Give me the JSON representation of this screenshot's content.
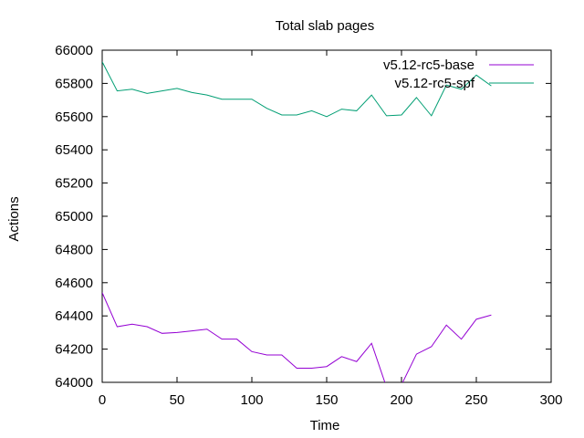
{
  "chart_data": {
    "type": "line",
    "title": "Total slab pages",
    "xlabel": "Time",
    "ylabel": "Actions",
    "xlim": [
      0,
      300
    ],
    "ylim": [
      64000,
      66000
    ],
    "xticks": [
      0,
      50,
      100,
      150,
      200,
      250,
      300
    ],
    "yticks": [
      64000,
      64200,
      64400,
      64600,
      64800,
      65000,
      65200,
      65400,
      65600,
      65800,
      66000
    ],
    "grid": false,
    "legend_position": "top-right",
    "series": [
      {
        "name": "v5.12-rc5-base",
        "color": "#9400d3",
        "x": [
          0,
          10,
          20,
          30,
          40,
          50,
          60,
          70,
          80,
          90,
          100,
          110,
          120,
          130,
          140,
          150,
          160,
          170,
          180,
          190,
          200,
          210,
          220,
          230,
          240,
          250,
          260
        ],
        "values": [
          64540,
          64335,
          64350,
          64335,
          64295,
          64300,
          64310,
          64320,
          64260,
          64260,
          64185,
          64165,
          64165,
          64085,
          64085,
          64095,
          64155,
          64125,
          64235,
          63970,
          63985,
          64170,
          64215,
          64345,
          64260,
          64380,
          64405
        ]
      },
      {
        "name": "v5.12-rc5-spf",
        "color": "#009e73",
        "x": [
          0,
          10,
          20,
          30,
          40,
          50,
          60,
          70,
          80,
          90,
          100,
          110,
          120,
          130,
          140,
          150,
          160,
          170,
          180,
          190,
          200,
          210,
          220,
          230,
          240,
          250,
          260
        ],
        "values": [
          65930,
          65755,
          65765,
          65740,
          65755,
          65770,
          65745,
          65730,
          65705,
          65705,
          65705,
          65650,
          65610,
          65610,
          65635,
          65600,
          65645,
          65635,
          65730,
          65605,
          65610,
          65715,
          65605,
          65790,
          65765,
          65850,
          65785
        ]
      }
    ]
  }
}
